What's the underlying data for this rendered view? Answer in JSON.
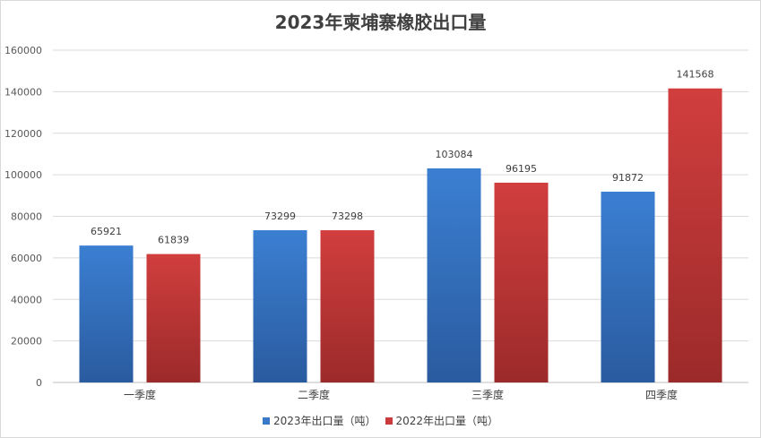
{
  "chart_data": {
    "type": "bar",
    "title": "2023年柬埔寨橡胶出口量",
    "categories": [
      "一季度",
      "二季度",
      "三季度",
      "四季度"
    ],
    "series": [
      {
        "name": "2023年出口量（吨）",
        "values": [
          65921,
          73299,
          103084,
          91872
        ],
        "color": "#2e63ad"
      },
      {
        "name": "2022年出口量（吨）",
        "values": [
          61839,
          73298,
          96195,
          141568
        ],
        "color": "#b03030"
      }
    ],
    "yticks": [
      "0",
      "20000",
      "40000",
      "60000",
      "80000",
      "100000",
      "120000",
      "140000",
      "160000"
    ],
    "ylim": [
      0,
      160000
    ],
    "grid": true,
    "legend": "bottom"
  }
}
